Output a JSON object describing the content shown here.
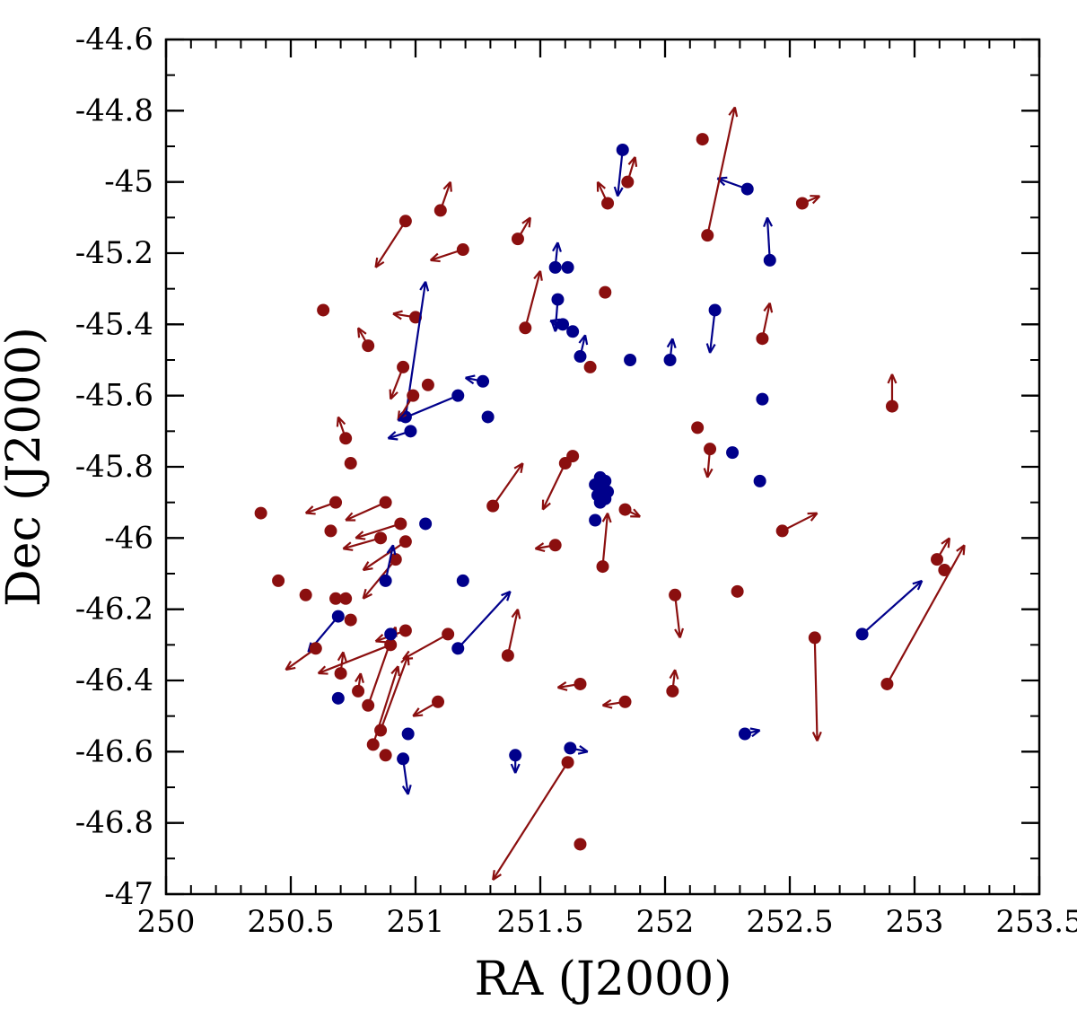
{
  "chart_data": {
    "type": "scatter",
    "subtype": "proper-motion-quiver",
    "title": "",
    "xlabel": "RA (J2000)",
    "ylabel": "Dec (J2000)",
    "xlim": [
      250,
      253.5
    ],
    "ylim": [
      -47,
      -44.6
    ],
    "grid": false,
    "legend": "none",
    "marker_radius": 7,
    "colors": {
      "red_series": "#8b0f0f",
      "blue_series": "#00008b",
      "axis": "#000000",
      "background": "#ffffff"
    },
    "x_major_ticks": [
      {
        "v": 250,
        "label": "250"
      },
      {
        "v": 250.5,
        "label": "250.5"
      },
      {
        "v": 251,
        "label": "251"
      },
      {
        "v": 251.5,
        "label": "251.5"
      },
      {
        "v": 252,
        "label": "252"
      },
      {
        "v": 252.5,
        "label": "252.5"
      },
      {
        "v": 253,
        "label": "253"
      },
      {
        "v": 253.5,
        "label": "253.5"
      }
    ],
    "y_major_ticks": [
      {
        "v": -44.6,
        "label": "-44.6"
      },
      {
        "v": -44.8,
        "label": "-44.8"
      },
      {
        "v": -45,
        "label": "-45"
      },
      {
        "v": -45.2,
        "label": "-45.2"
      },
      {
        "v": -45.4,
        "label": "-45.4"
      },
      {
        "v": -45.6,
        "label": "-45.6"
      },
      {
        "v": -45.8,
        "label": "-45.8"
      },
      {
        "v": -46,
        "label": "-46"
      },
      {
        "v": -46.2,
        "label": "-46.2"
      },
      {
        "v": -46.4,
        "label": "-46.4"
      },
      {
        "v": -46.6,
        "label": "-46.6"
      },
      {
        "v": -46.8,
        "label": "-46.8"
      },
      {
        "v": -47,
        "label": "-47"
      }
    ],
    "x_minor_step": 0.1,
    "y_minor_step": 0.1,
    "points_format": [
      "ra",
      "dec",
      "color(r|b)",
      "pm_dra(optional)",
      "pm_ddec(optional)"
    ],
    "points": [
      [
        251.83,
        -44.91,
        "b",
        -0.02,
        -0.13
      ],
      [
        252.15,
        -44.88,
        "r"
      ],
      [
        251.85,
        -45.0,
        "r",
        0.03,
        0.07
      ],
      [
        251.77,
        -45.06,
        "r",
        -0.04,
        0.06
      ],
      [
        252.33,
        -45.02,
        "b",
        -0.12,
        0.03
      ],
      [
        252.55,
        -45.06,
        "r",
        0.07,
        0.02
      ],
      [
        252.17,
        -45.15,
        "r",
        0.11,
        0.36
      ],
      [
        250.96,
        -45.11,
        "r",
        -0.12,
        -0.13
      ],
      [
        251.1,
        -45.08,
        "r",
        0.04,
        0.08
      ],
      [
        251.19,
        -45.19,
        "r",
        -0.13,
        -0.03
      ],
      [
        251.41,
        -45.16,
        "r",
        0.05,
        0.06
      ],
      [
        252.42,
        -45.22,
        "b",
        -0.01,
        0.12
      ],
      [
        251.56,
        -45.24,
        "b",
        0.01,
        0.07
      ],
      [
        251.61,
        -45.24,
        "b"
      ],
      [
        250.63,
        -45.36,
        "r"
      ],
      [
        251.0,
        -45.38,
        "r",
        -0.09,
        0.01
      ],
      [
        251.44,
        -45.41,
        "r",
        0.06,
        0.16
      ],
      [
        251.57,
        -45.33,
        "b",
        -0.01,
        -0.09
      ],
      [
        251.76,
        -45.31,
        "r"
      ],
      [
        251.59,
        -45.4,
        "b",
        -0.05,
        0.01
      ],
      [
        251.63,
        -45.42,
        "b"
      ],
      [
        250.81,
        -45.46,
        "r",
        -0.04,
        0.05
      ],
      [
        252.2,
        -45.36,
        "b",
        -0.02,
        -0.12
      ],
      [
        252.39,
        -45.44,
        "r",
        0.03,
        0.1
      ],
      [
        250.96,
        -45.66,
        "b",
        0.08,
        0.38
      ],
      [
        250.95,
        -45.52,
        "r",
        -0.05,
        -0.09
      ],
      [
        251.05,
        -45.57,
        "r"
      ],
      [
        250.99,
        -45.6,
        "r",
        -0.06,
        -0.07
      ],
      [
        251.66,
        -45.49,
        "b",
        0.02,
        0.06
      ],
      [
        251.7,
        -45.52,
        "r"
      ],
      [
        251.86,
        -45.5,
        "b"
      ],
      [
        252.02,
        -45.5,
        "b",
        0.01,
        0.06
      ],
      [
        251.27,
        -45.56,
        "b",
        -0.07,
        0.01
      ],
      [
        251.17,
        -45.6,
        "b",
        -0.24,
        -0.07
      ],
      [
        251.29,
        -45.66,
        "b"
      ],
      [
        250.98,
        -45.7,
        "b",
        -0.09,
        -0.02
      ],
      [
        252.91,
        -45.63,
        "r",
        0.0,
        0.09
      ],
      [
        252.39,
        -45.61,
        "b"
      ],
      [
        250.72,
        -45.72,
        "r",
        -0.03,
        0.06
      ],
      [
        250.74,
        -45.79,
        "r"
      ],
      [
        251.63,
        -45.77,
        "r"
      ],
      [
        252.13,
        -45.69,
        "r"
      ],
      [
        252.18,
        -45.75,
        "r",
        -0.01,
        -0.08
      ],
      [
        252.27,
        -45.76,
        "b"
      ],
      [
        252.38,
        -45.84,
        "b"
      ],
      [
        251.6,
        -45.79,
        "r",
        -0.09,
        -0.13
      ],
      [
        251.74,
        -45.83,
        "b"
      ],
      [
        251.76,
        -45.84,
        "b"
      ],
      [
        251.72,
        -45.85,
        "b"
      ],
      [
        251.75,
        -45.86,
        "b"
      ],
      [
        251.77,
        -45.87,
        "b"
      ],
      [
        251.73,
        -45.88,
        "b"
      ],
      [
        251.76,
        -45.89,
        "b"
      ],
      [
        251.74,
        -45.9,
        "b"
      ],
      [
        251.72,
        -45.95,
        "b"
      ],
      [
        251.84,
        -45.92,
        "r",
        0.06,
        -0.02
      ],
      [
        250.38,
        -45.93,
        "r"
      ],
      [
        250.68,
        -45.9,
        "r",
        -0.12,
        -0.03
      ],
      [
        250.66,
        -45.98,
        "r"
      ],
      [
        250.88,
        -45.9,
        "r",
        -0.16,
        -0.05
      ],
      [
        250.94,
        -45.96,
        "r",
        -0.18,
        -0.04
      ],
      [
        250.96,
        -46.01,
        "r",
        -0.17,
        -0.08
      ],
      [
        250.92,
        -46.06,
        "r",
        -0.13,
        -0.11
      ],
      [
        250.86,
        -46.0,
        "r",
        -0.15,
        -0.03
      ],
      [
        251.04,
        -45.96,
        "b"
      ],
      [
        251.31,
        -45.91,
        "r",
        0.12,
        0.12
      ],
      [
        251.56,
        -46.02,
        "r",
        -0.08,
        -0.01
      ],
      [
        251.75,
        -46.08,
        "r",
        0.02,
        0.15
      ],
      [
        252.47,
        -45.98,
        "r",
        0.14,
        0.05
      ],
      [
        252.29,
        -46.15,
        "r"
      ],
      [
        252.04,
        -46.16,
        "r",
        0.02,
        -0.12
      ],
      [
        250.45,
        -46.12,
        "r"
      ],
      [
        250.56,
        -46.16,
        "r"
      ],
      [
        250.68,
        -46.17,
        "r"
      ],
      [
        250.72,
        -46.17,
        "r"
      ],
      [
        250.69,
        -46.22,
        "b",
        -0.12,
        -0.1
      ],
      [
        250.74,
        -46.23,
        "r"
      ],
      [
        250.88,
        -46.12,
        "b",
        0.03,
        0.1
      ],
      [
        251.19,
        -46.12,
        "b"
      ],
      [
        253.09,
        -46.06,
        "r",
        0.05,
        0.06
      ],
      [
        253.12,
        -46.09,
        "r"
      ],
      [
        250.6,
        -46.31,
        "r",
        -0.12,
        -0.06
      ],
      [
        250.7,
        -46.38,
        "r",
        0.01,
        0.06
      ],
      [
        250.77,
        -46.43,
        "r",
        0.01,
        0.05
      ],
      [
        250.69,
        -46.45,
        "b"
      ],
      [
        250.81,
        -46.47,
        "r",
        0.11,
        0.22
      ],
      [
        250.86,
        -46.54,
        "r",
        0.11,
        0.21
      ],
      [
        250.9,
        -46.3,
        "r",
        -0.29,
        -0.08
      ],
      [
        250.96,
        -46.26,
        "r",
        -0.12,
        -0.03
      ],
      [
        250.9,
        -46.27,
        "b"
      ],
      [
        251.13,
        -46.27,
        "r",
        -0.18,
        -0.07
      ],
      [
        251.17,
        -46.31,
        "b",
        0.21,
        0.16
      ],
      [
        251.37,
        -46.33,
        "r",
        0.04,
        0.13
      ],
      [
        251.09,
        -46.46,
        "r",
        -0.1,
        -0.04
      ],
      [
        251.66,
        -46.41,
        "r",
        -0.09,
        -0.01
      ],
      [
        251.84,
        -46.46,
        "r",
        -0.09,
        -0.01
      ],
      [
        252.03,
        -46.43,
        "r",
        0.01,
        0.06
      ],
      [
        252.6,
        -46.28,
        "r",
        0.01,
        -0.29
      ],
      [
        252.79,
        -46.27,
        "b",
        0.24,
        0.15
      ],
      [
        252.89,
        -46.41,
        "r",
        0.31,
        0.39
      ],
      [
        250.83,
        -46.58,
        "r",
        0.1,
        0.22
      ],
      [
        250.88,
        -46.61,
        "r"
      ],
      [
        250.97,
        -46.55,
        "b"
      ],
      [
        250.95,
        -46.62,
        "b",
        0.02,
        -0.1
      ],
      [
        251.4,
        -46.61,
        "b",
        0.0,
        -0.05
      ],
      [
        251.62,
        -46.59,
        "b",
        0.07,
        -0.01
      ],
      [
        251.61,
        -46.63,
        "r",
        -0.3,
        -0.33
      ],
      [
        252.32,
        -46.55,
        "b",
        0.06,
        0.01
      ],
      [
        251.66,
        -46.86,
        "r"
      ]
    ]
  }
}
